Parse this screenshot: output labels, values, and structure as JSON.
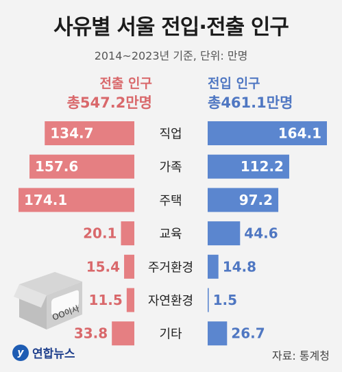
{
  "title": "사유별 서울 전입·전출 인구",
  "subtitle": "2014~2023년 기준, 단위: 만명",
  "left_header": {
    "label": "전출 인구",
    "total": "총547.2만명"
  },
  "right_header": {
    "label": "전입 인구",
    "total": "총461.1만명"
  },
  "box_label": "OO이사",
  "logo_text": "연합뉴스",
  "source": "자료: 통계청",
  "colors": {
    "outflow": "#e57f82",
    "inflow": "#5b86cf",
    "outflow_text": "#d9686b",
    "inflow_text": "#4f77c2"
  },
  "chart_data": {
    "type": "bar",
    "orientation": "horizontal-diverging",
    "categories": [
      "직업",
      "가족",
      "주택",
      "교육",
      "주거환경",
      "자연환경",
      "기타"
    ],
    "series": [
      {
        "name": "전출 인구",
        "values": [
          134.7,
          157.6,
          174.1,
          20.1,
          15.4,
          11.5,
          33.8
        ]
      },
      {
        "name": "전입 인구",
        "values": [
          164.1,
          112.2,
          97.2,
          44.6,
          14.8,
          1.5,
          26.7
        ]
      }
    ],
    "value_labels": {
      "outflow": [
        "134.7",
        "157.6",
        "174.1",
        "20.1",
        "15.4",
        "11.5",
        "33.8"
      ],
      "inflow": [
        "164.1",
        "112.2",
        "97.2",
        "44.6",
        "14.8",
        "1.5",
        "26.7"
      ]
    },
    "title": "사유별 서울 전입·전출 인구",
    "xlabel": "",
    "ylabel": ""
  }
}
